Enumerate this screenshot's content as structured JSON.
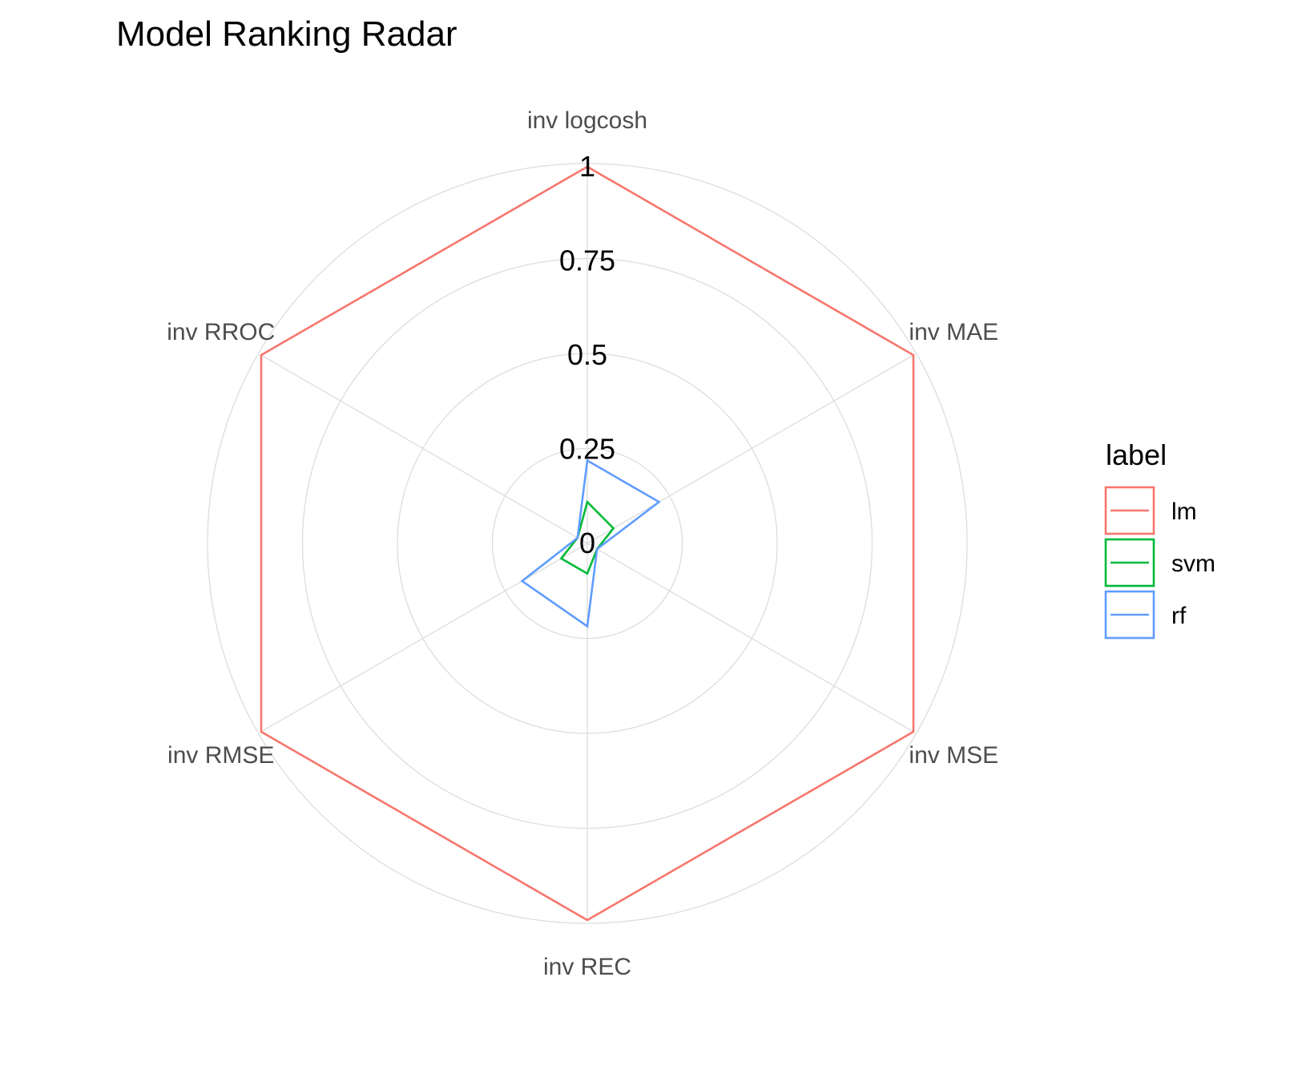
{
  "chart_data": {
    "type": "radar",
    "title": "Model Ranking Radar",
    "axes": [
      "inv logcosh",
      "inv MAE",
      "inv MSE",
      "inv REC",
      "inv RMSE",
      "inv RROC"
    ],
    "radial_ticks": [
      "0",
      "0.25",
      "0.5",
      "0.75",
      "1"
    ],
    "rlim": [
      0,
      1
    ],
    "grid": true,
    "legend": {
      "title": "label",
      "position": "right"
    },
    "series": [
      {
        "name": "lm",
        "color": "#F8766D",
        "values": [
          1,
          1,
          1,
          1,
          1,
          1
        ]
      },
      {
        "name": "svm",
        "color": "#00BA38",
        "values": [
          0.11,
          0.08,
          0.03,
          0.08,
          0.08,
          0.03
        ]
      },
      {
        "name": "rf",
        "color": "#619CFF",
        "values": [
          0.22,
          0.22,
          0.03,
          0.22,
          0.2,
          0.03
        ]
      }
    ]
  }
}
